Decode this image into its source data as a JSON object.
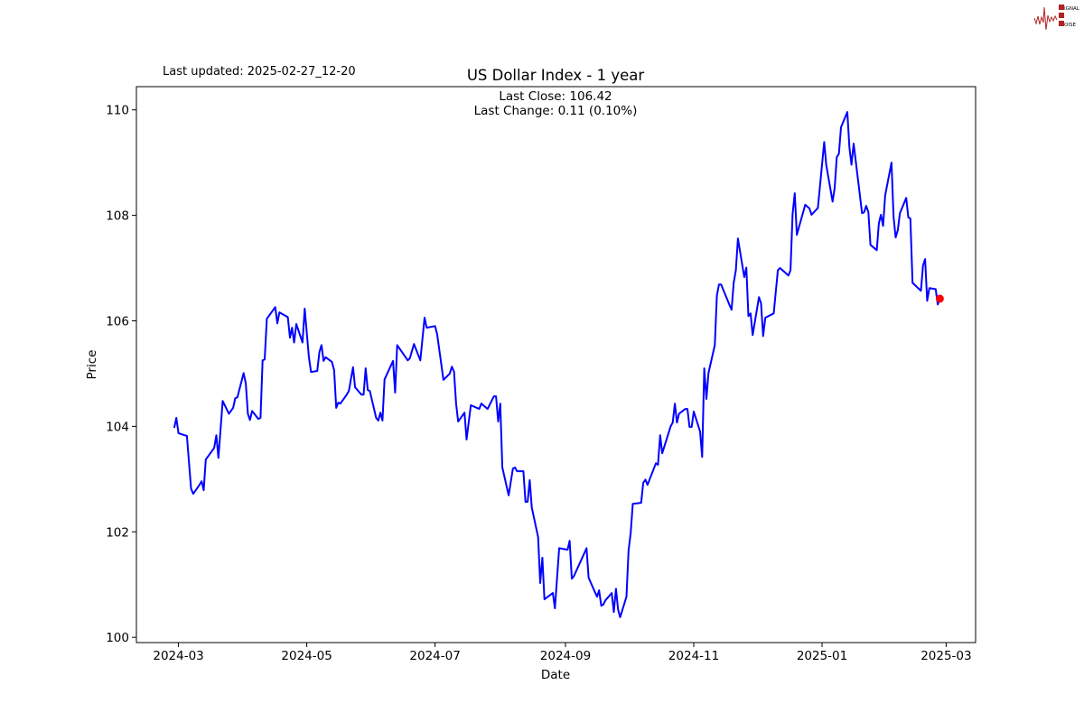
{
  "header": {
    "last_updated": "Last updated: 2025-02-27_12-20"
  },
  "logo": {
    "lines": [
      "SIGNAL",
      "2",
      "NOISE"
    ],
    "wave_color": "#b22222"
  },
  "chart_data": {
    "type": "line",
    "title": "US Dollar Index - 1 year",
    "annotations": [
      "Last Close: 106.42",
      "Last Change: 0.11 (0.10%)"
    ],
    "xlabel": "Date",
    "ylabel": "Price",
    "xlim": [
      "2024-02-10",
      "2025-03-15"
    ],
    "ylim": [
      99.9,
      110.44
    ],
    "x_ticks": [
      "2024-03",
      "2024-05",
      "2024-07",
      "2024-09",
      "2024-11",
      "2025-01",
      "2025-03"
    ],
    "y_ticks": [
      100,
      102,
      104,
      106,
      108,
      110
    ],
    "grid": false,
    "line_color": "#0000ff",
    "marker_color": "#ff0000",
    "last_point": {
      "x": "2025-02-26",
      "y": 106.42
    },
    "series": [
      {
        "x": [
          "2024-02-28",
          "2024-02-29",
          "2024-03-01",
          "2024-03-04",
          "2024-03-05",
          "2024-03-07",
          "2024-03-08",
          "2024-03-11",
          "2024-03-12",
          "2024-03-13",
          "2024-03-14",
          "2024-03-18",
          "2024-03-19",
          "2024-03-20",
          "2024-03-22",
          "2024-03-25",
          "2024-03-27",
          "2024-03-28",
          "2024-03-29",
          "2024-04-01",
          "2024-04-02",
          "2024-04-03",
          "2024-04-04",
          "2024-04-05",
          "2024-04-08",
          "2024-04-09",
          "2024-04-10",
          "2024-04-11",
          "2024-04-12",
          "2024-04-16",
          "2024-04-17",
          "2024-04-18",
          "2024-04-22",
          "2024-04-23",
          "2024-04-24",
          "2024-04-25",
          "2024-04-26",
          "2024-04-29",
          "2024-04-30",
          "2024-05-02",
          "2024-05-03",
          "2024-05-06",
          "2024-05-07",
          "2024-05-08",
          "2024-05-09",
          "2024-05-10",
          "2024-05-13",
          "2024-05-14",
          "2024-05-15",
          "2024-05-16",
          "2024-05-17",
          "2024-05-20",
          "2024-05-21",
          "2024-05-23",
          "2024-05-24",
          "2024-05-27",
          "2024-05-28",
          "2024-05-29",
          "2024-05-30",
          "2024-05-31",
          "2024-06-03",
          "2024-06-04",
          "2024-06-05",
          "2024-06-06",
          "2024-06-07",
          "2024-06-11",
          "2024-06-12",
          "2024-06-13",
          "2024-06-18",
          "2024-06-19",
          "2024-06-21",
          "2024-06-24",
          "2024-06-26",
          "2024-06-27",
          "2024-07-01",
          "2024-07-02",
          "2024-07-05",
          "2024-07-08",
          "2024-07-09",
          "2024-07-10",
          "2024-07-11",
          "2024-07-12",
          "2024-07-15",
          "2024-07-16",
          "2024-07-18",
          "2024-07-22",
          "2024-07-23",
          "2024-07-26",
          "2024-07-29",
          "2024-07-30",
          "2024-07-31",
          "2024-08-01",
          "2024-08-02",
          "2024-08-05",
          "2024-08-07",
          "2024-08-08",
          "2024-08-09",
          "2024-08-12",
          "2024-08-13",
          "2024-08-14",
          "2024-08-15",
          "2024-08-16",
          "2024-08-19",
          "2024-08-20",
          "2024-08-21",
          "2024-08-22",
          "2024-08-26",
          "2024-08-27",
          "2024-08-28",
          "2024-08-29",
          "2024-09-02",
          "2024-09-03",
          "2024-09-04",
          "2024-09-05",
          "2024-09-09",
          "2024-09-11",
          "2024-09-12",
          "2024-09-16",
          "2024-09-17",
          "2024-09-18",
          "2024-09-19",
          "2024-09-20",
          "2024-09-23",
          "2024-09-24",
          "2024-09-25",
          "2024-09-26",
          "2024-09-27",
          "2024-09-30",
          "2024-10-01",
          "2024-10-02",
          "2024-10-03",
          "2024-10-07",
          "2024-10-08",
          "2024-10-09",
          "2024-10-10",
          "2024-10-14",
          "2024-10-15",
          "2024-10-16",
          "2024-10-17",
          "2024-10-21",
          "2024-10-22",
          "2024-10-23",
          "2024-10-24",
          "2024-10-25",
          "2024-10-28",
          "2024-10-29",
          "2024-10-30",
          "2024-10-31",
          "2024-11-01",
          "2024-11-04",
          "2024-11-05",
          "2024-11-06",
          "2024-11-07",
          "2024-11-08",
          "2024-11-11",
          "2024-11-12",
          "2024-11-13",
          "2024-11-14",
          "2024-11-18",
          "2024-11-19",
          "2024-11-20",
          "2024-11-21",
          "2024-11-22",
          "2024-11-25",
          "2024-11-26",
          "2024-11-27",
          "2024-11-28",
          "2024-11-29",
          "2024-12-02",
          "2024-12-03",
          "2024-12-04",
          "2024-12-05",
          "2024-12-09",
          "2024-12-11",
          "2024-12-12",
          "2024-12-16",
          "2024-12-17",
          "2024-12-18",
          "2024-12-19",
          "2024-12-20",
          "2024-12-24",
          "2024-12-26",
          "2024-12-27",
          "2024-12-30",
          "2025-01-02",
          "2025-01-03",
          "2025-01-06",
          "2025-01-07",
          "2025-01-08",
          "2025-01-09",
          "2025-01-10",
          "2025-01-13",
          "2025-01-14",
          "2025-01-15",
          "2025-01-16",
          "2025-01-20",
          "2025-01-21",
          "2025-01-22",
          "2025-01-23",
          "2025-01-24",
          "2025-01-27",
          "2025-01-28",
          "2025-01-29",
          "2025-01-30",
          "2025-01-31",
          "2025-02-03",
          "2025-02-04",
          "2025-02-05",
          "2025-02-06",
          "2025-02-07",
          "2025-02-10",
          "2025-02-11",
          "2025-02-12",
          "2025-02-13",
          "2025-02-17",
          "2025-02-18",
          "2025-02-19",
          "2025-02-20",
          "2025-02-21",
          "2025-02-24",
          "2025-02-25",
          "2025-02-26"
        ],
        "y": [
          103.97,
          104.16,
          103.87,
          103.83,
          103.82,
          102.82,
          102.72,
          102.89,
          102.96,
          102.79,
          103.37,
          103.59,
          103.83,
          103.4,
          104.48,
          104.24,
          104.35,
          104.53,
          104.55,
          105.01,
          104.81,
          104.24,
          104.12,
          104.29,
          104.14,
          104.16,
          105.25,
          105.27,
          106.04,
          106.26,
          105.95,
          106.16,
          106.07,
          105.68,
          105.87,
          105.59,
          105.94,
          105.59,
          106.23,
          105.32,
          105.03,
          105.05,
          105.41,
          105.54,
          105.24,
          105.31,
          105.22,
          105.06,
          104.35,
          104.45,
          104.43,
          104.6,
          104.67,
          105.12,
          104.74,
          104.6,
          104.6,
          105.1,
          104.69,
          104.67,
          104.16,
          104.11,
          104.26,
          104.11,
          104.89,
          105.24,
          104.64,
          105.54,
          105.25,
          105.29,
          105.56,
          105.25,
          106.06,
          105.87,
          105.9,
          105.75,
          104.88,
          105.0,
          105.13,
          105.04,
          104.43,
          104.09,
          104.26,
          103.75,
          104.4,
          104.33,
          104.43,
          104.33,
          104.57,
          104.57,
          104.09,
          104.43,
          103.22,
          102.69,
          103.2,
          103.22,
          103.15,
          103.15,
          102.57,
          102.57,
          102.98,
          102.46,
          101.9,
          101.03,
          101.51,
          100.72,
          100.84,
          100.55,
          101.13,
          101.69,
          101.66,
          101.83,
          101.11,
          101.16,
          101.51,
          101.69,
          101.13,
          100.77,
          100.89,
          100.6,
          100.62,
          100.7,
          100.84,
          100.48,
          100.92,
          100.53,
          100.38,
          100.77,
          101.64,
          101.98,
          102.53,
          102.55,
          102.93,
          102.99,
          102.89,
          103.3,
          103.27,
          103.83,
          103.49,
          104.0,
          104.07,
          104.43,
          104.07,
          104.24,
          104.33,
          104.33,
          103.99,
          103.99,
          104.28,
          103.9,
          103.42,
          105.1,
          104.52,
          105.01,
          105.54,
          106.48,
          106.69,
          106.69,
          106.3,
          106.21,
          106.72,
          106.96,
          107.56,
          106.83,
          107.01,
          106.09,
          106.14,
          105.73,
          106.45,
          106.33,
          105.71,
          106.06,
          106.14,
          106.96,
          107.0,
          106.86,
          106.96,
          108.02,
          108.42,
          107.63,
          108.2,
          108.13,
          108.01,
          108.14,
          109.39,
          108.95,
          108.26,
          108.52,
          109.1,
          109.17,
          109.67,
          109.96,
          109.29,
          108.96,
          109.36,
          108.04,
          108.06,
          108.18,
          108.06,
          107.44,
          107.34,
          107.85,
          108.01,
          107.8,
          108.38,
          109.0,
          107.97,
          107.58,
          107.72,
          108.04,
          108.33,
          107.96,
          107.94,
          106.72,
          106.57,
          107.05,
          107.17,
          106.38,
          106.62,
          106.6,
          106.31,
          106.42
        ]
      }
    ]
  }
}
